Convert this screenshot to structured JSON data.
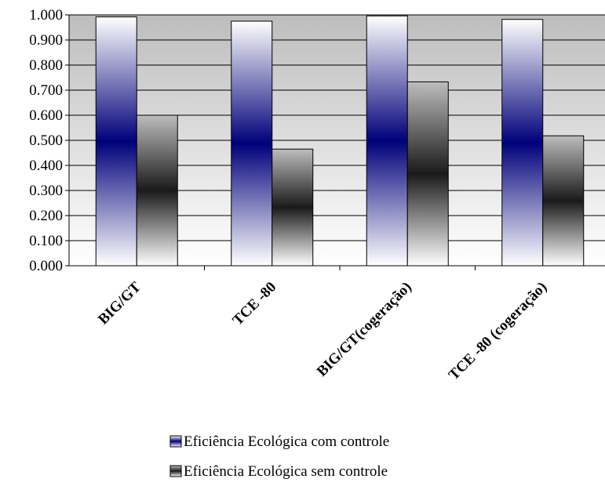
{
  "chart_data": {
    "type": "bar",
    "categories": [
      "BIG/GT",
      "TCE -80",
      "BIG/GT(cogeração)",
      "TCE -80 (cogeração)"
    ],
    "series": [
      {
        "name": "Eficiência Ecológica com controle",
        "values": [
          0.992,
          0.975,
          0.996,
          0.982
        ]
      },
      {
        "name": "Eficiência Ecológica sem controle",
        "values": [
          0.6,
          0.465,
          0.733,
          0.518
        ]
      }
    ],
    "yticks": [
      "0.000",
      "0.100",
      "0.200",
      "0.300",
      "0.400",
      "0.500",
      "0.600",
      "0.700",
      "0.800",
      "0.900",
      "1.000"
    ],
    "ylim": [
      0,
      1
    ],
    "grid": true,
    "legend_position": "bottom",
    "colors": {
      "plot_bg": "#c0c0c0",
      "series1_mid": "#00007a",
      "series2_mid": "#1a1a1a",
      "bar_light": "#ffffff"
    }
  }
}
